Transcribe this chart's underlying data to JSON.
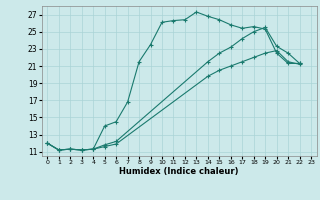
{
  "xlabel": "Humidex (Indice chaleur)",
  "xlim": [
    -0.5,
    23.5
  ],
  "ylim": [
    10.5,
    28
  ],
  "xticks": [
    0,
    1,
    2,
    3,
    4,
    5,
    6,
    7,
    8,
    9,
    10,
    11,
    12,
    13,
    14,
    15,
    16,
    17,
    18,
    19,
    20,
    21,
    22,
    23
  ],
  "yticks": [
    11,
    13,
    15,
    17,
    19,
    21,
    23,
    25,
    27
  ],
  "background_color": "#cce9ea",
  "grid_color": "#aad4d6",
  "line_color": "#1a7a6e",
  "curves": [
    {
      "x": [
        0,
        1,
        2,
        3,
        4,
        5,
        6,
        7,
        8,
        9,
        10,
        11,
        12,
        13,
        14,
        15,
        16,
        17,
        18,
        19,
        20,
        21,
        22
      ],
      "y": [
        12.0,
        11.2,
        11.3,
        11.2,
        11.3,
        14.0,
        14.5,
        16.8,
        21.5,
        23.5,
        26.1,
        26.3,
        26.4,
        27.3,
        26.8,
        26.4,
        25.8,
        25.4,
        25.6,
        25.3,
        22.5,
        21.3,
        21.3
      ]
    },
    {
      "x": [
        0,
        1,
        2,
        3,
        4,
        5,
        6,
        14,
        15,
        16,
        17,
        18,
        19,
        20,
        21,
        22
      ],
      "y": [
        12.0,
        11.2,
        11.3,
        11.2,
        11.3,
        11.8,
        12.2,
        21.5,
        22.5,
        23.2,
        24.2,
        25.0,
        25.5,
        23.3,
        22.5,
        21.3
      ]
    },
    {
      "x": [
        0,
        1,
        2,
        3,
        4,
        5,
        6,
        14,
        15,
        16,
        17,
        18,
        19,
        20,
        21,
        22
      ],
      "y": [
        12.0,
        11.2,
        11.3,
        11.2,
        11.3,
        11.6,
        11.9,
        19.8,
        20.5,
        21.0,
        21.5,
        22.0,
        22.5,
        22.8,
        21.5,
        21.2
      ]
    }
  ]
}
